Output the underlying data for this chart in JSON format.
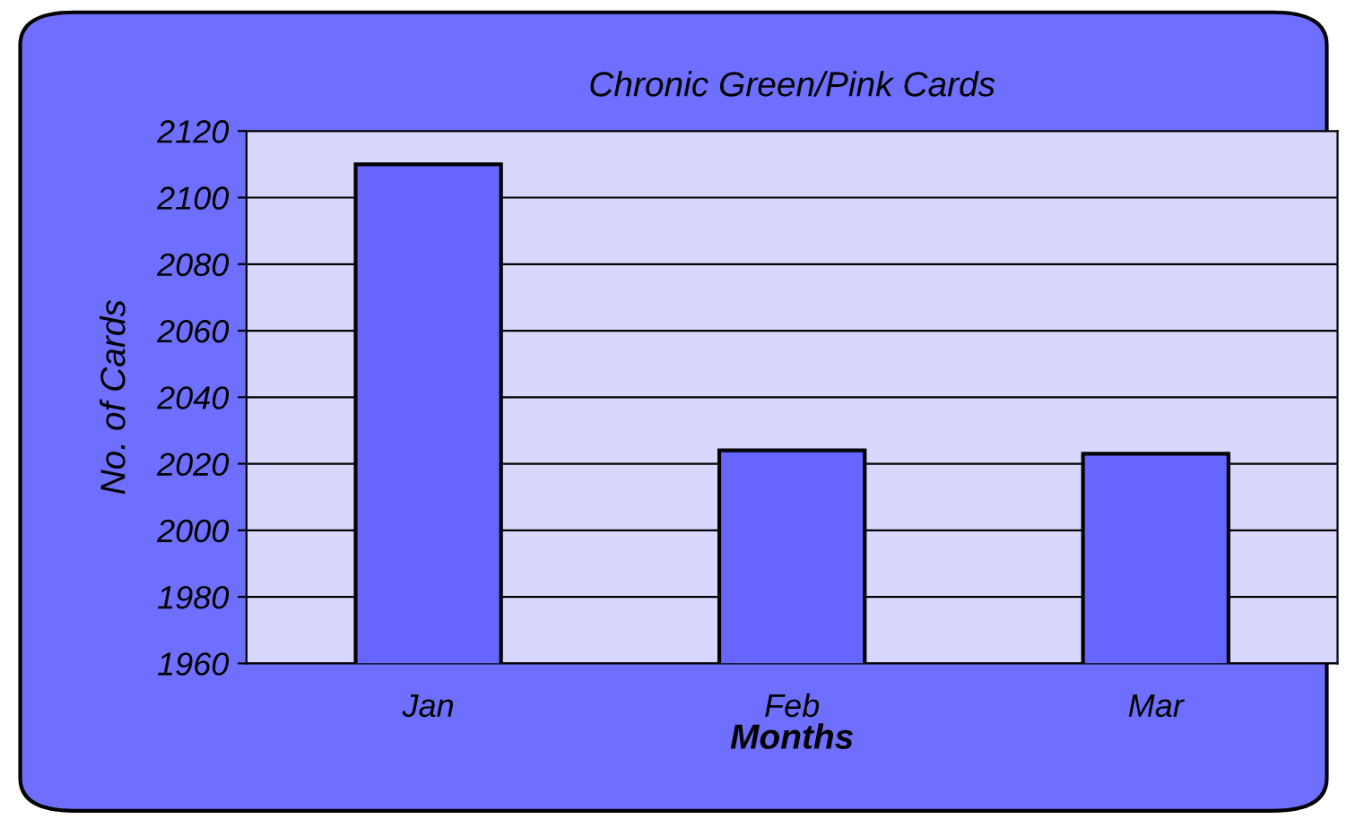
{
  "chart_data": {
    "type": "bar",
    "title": "Chronic Green/Pink Cards",
    "xlabel": "Months",
    "ylabel": "No. of Cards",
    "categories": [
      "Jan",
      "Feb",
      "Mar"
    ],
    "values": [
      2110,
      2024,
      2023
    ],
    "color": "#6666ff",
    "ylim": [
      1960,
      2120
    ],
    "yticks": [
      1960,
      1980,
      2000,
      2020,
      2040,
      2060,
      2080,
      2100,
      2120
    ],
    "grid": "y",
    "legend": false
  }
}
